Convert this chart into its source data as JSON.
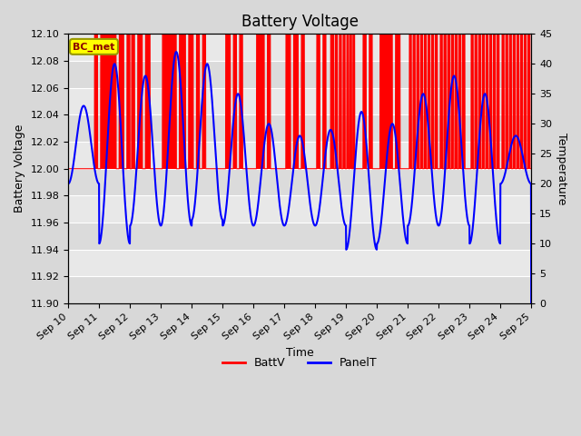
{
  "title": "Battery Voltage",
  "xlabel": "Time",
  "ylabel_left": "Battery Voltage",
  "ylabel_right": "Temperature",
  "ylim_left": [
    11.9,
    12.1
  ],
  "ylim_right": [
    0,
    45
  ],
  "yticks_left": [
    11.9,
    11.92,
    11.94,
    11.96,
    11.98,
    12.0,
    12.02,
    12.04,
    12.06,
    12.08,
    12.1
  ],
  "yticks_right": [
    0,
    5,
    10,
    15,
    20,
    25,
    30,
    35,
    40,
    45
  ],
  "xtick_labels": [
    "Sep 10",
    "Sep 11",
    "Sep 12",
    "Sep 13",
    "Sep 14",
    "Sep 15",
    "Sep 16",
    "Sep 17",
    "Sep 18",
    "Sep 19",
    "Sep 20",
    "Sep 21",
    "Sep 22",
    "Sep 23",
    "Sep 24",
    "Sep 25"
  ],
  "bg_color": "#d8d8d8",
  "plot_bg_light": "#e8e8e8",
  "plot_bg_dark": "#d0d0d0",
  "annotation_text": "BC_met",
  "annotation_bg": "#ffff00",
  "annotation_border": "#999900",
  "red_color": "#ff0000",
  "blue_color": "#0000ff",
  "legend_labels": [
    "BattV",
    "PanelT"
  ],
  "title_fontsize": 12,
  "axis_fontsize": 9,
  "tick_fontsize": 8,
  "n_days": 15,
  "batt_on_value": 12.1,
  "batt_off_value": 12.0,
  "temp_peaks": [
    33,
    40,
    38,
    42,
    40,
    35,
    30,
    28,
    29,
    32,
    30,
    35,
    38,
    35,
    28
  ],
  "temp_troughs": [
    20,
    10,
    13,
    13,
    14,
    13,
    13,
    13,
    13,
    9,
    10,
    13,
    13,
    10,
    20
  ]
}
